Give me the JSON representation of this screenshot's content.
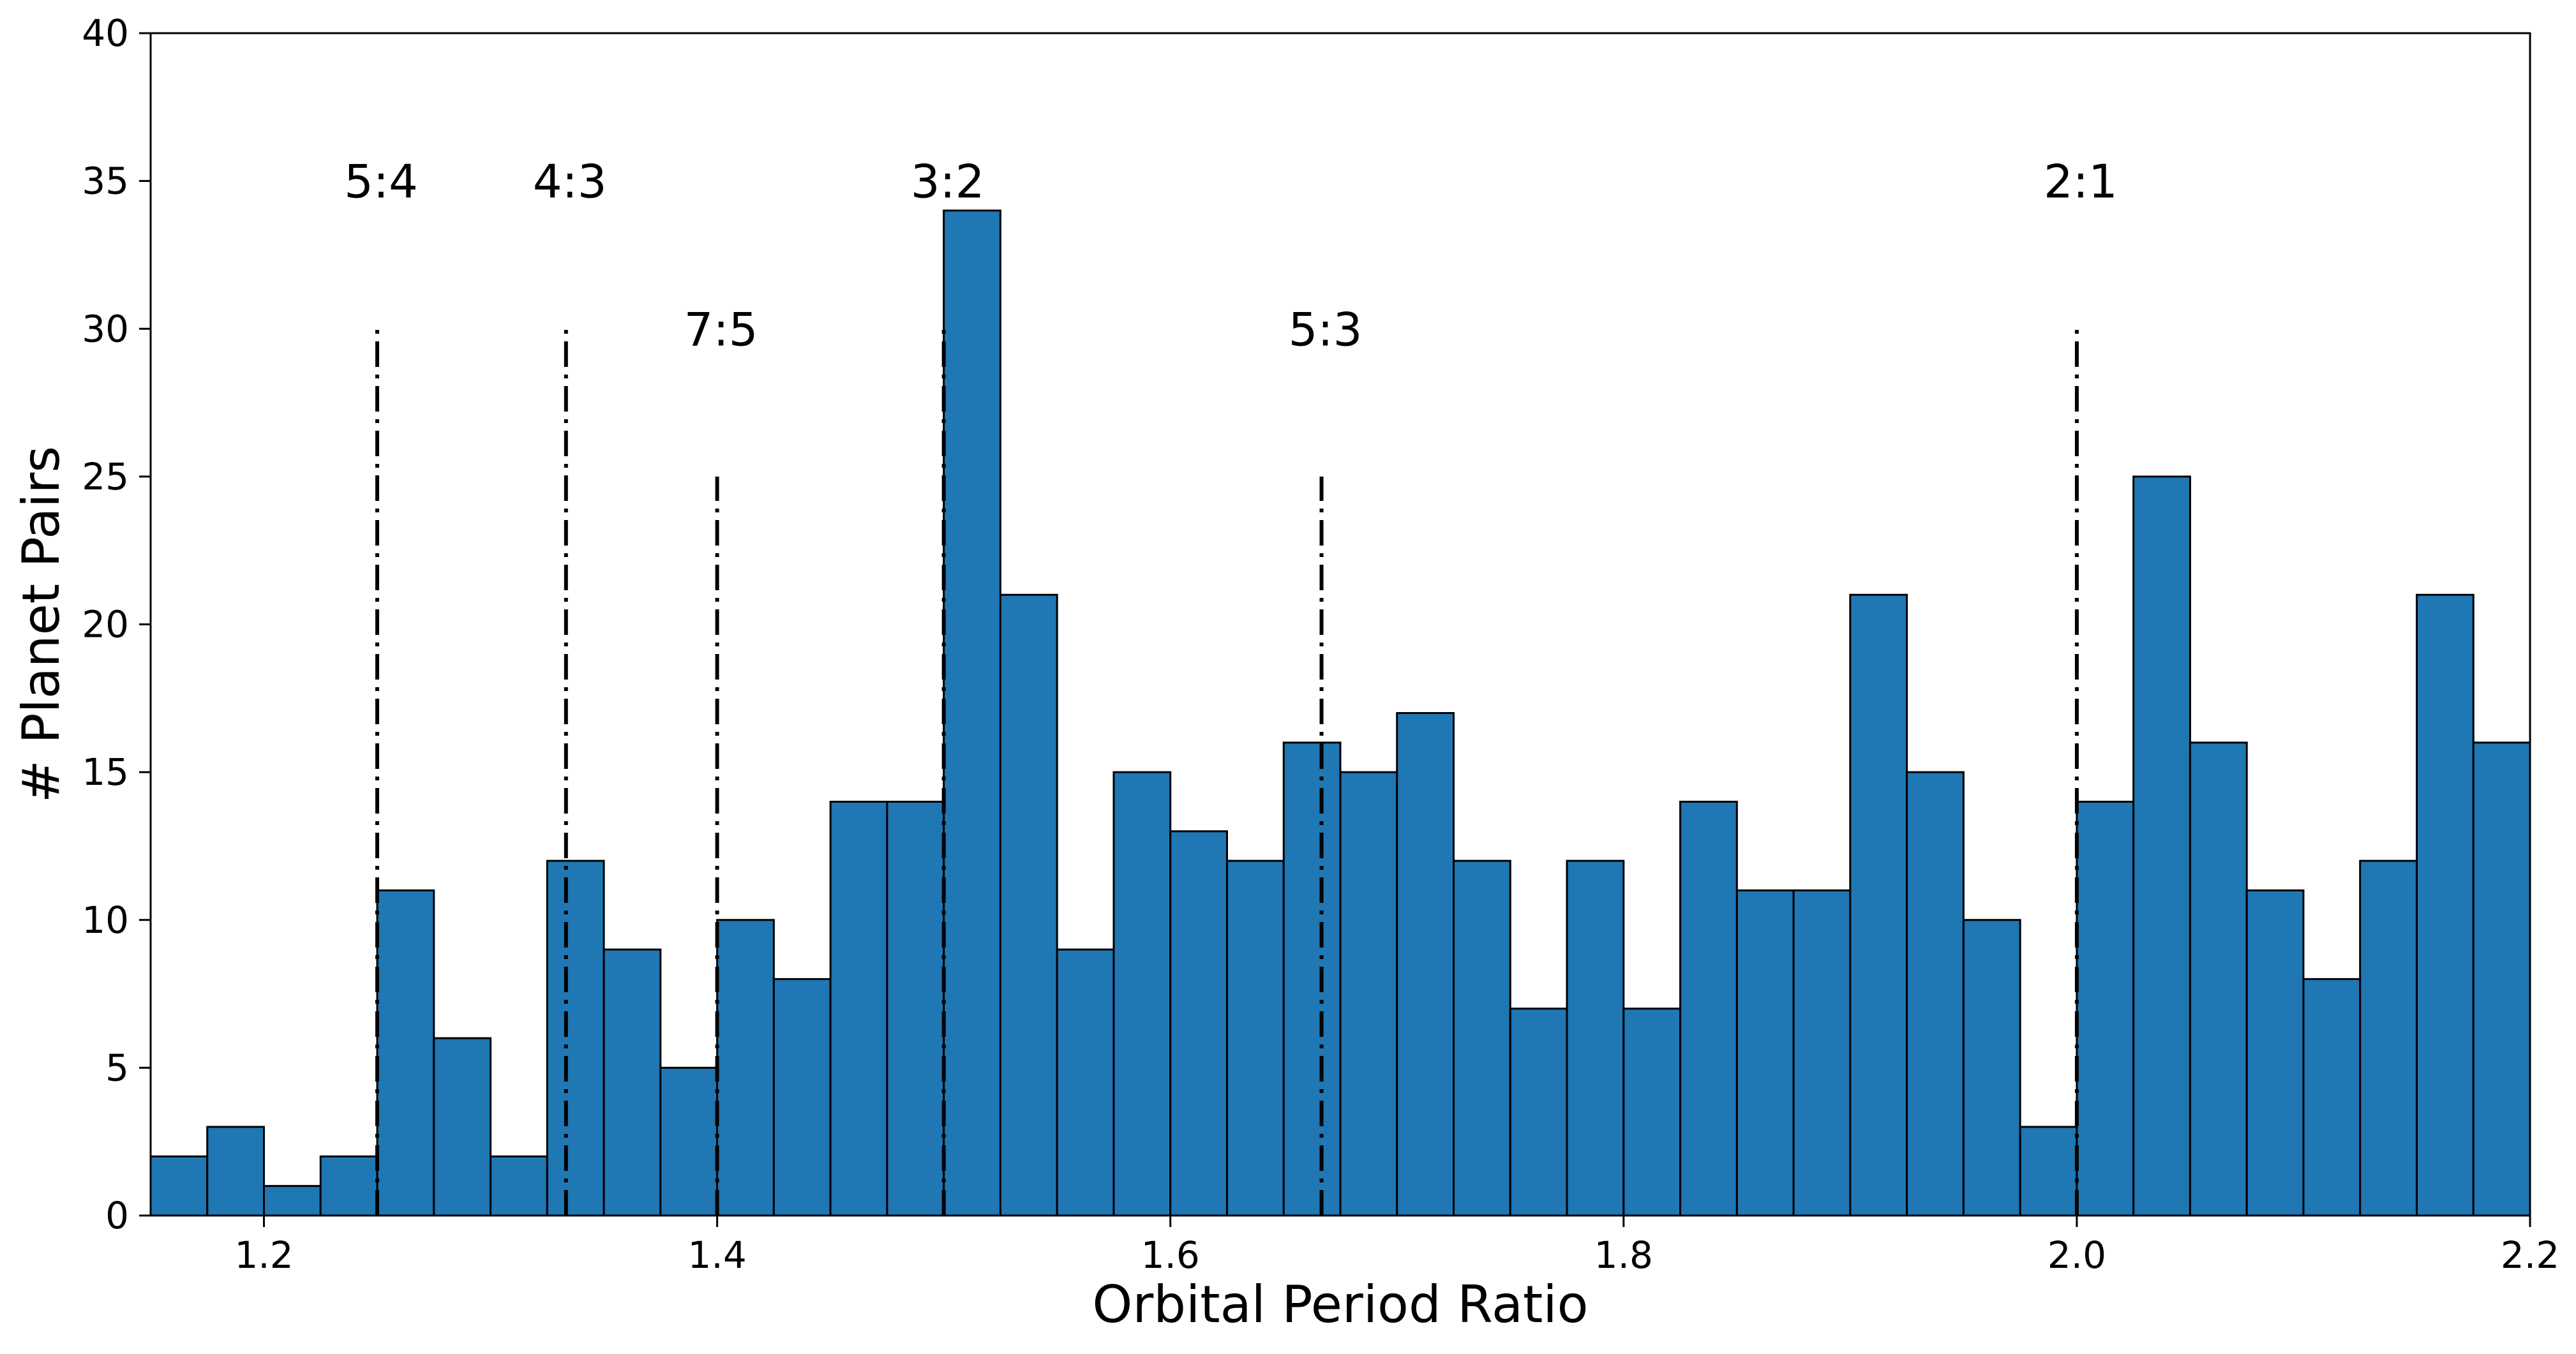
{
  "chart_data": {
    "type": "bar",
    "title": "",
    "xlabel": "Orbital Period Ratio",
    "ylabel": "# Planet Pairs",
    "xlim": [
      1.15,
      2.2
    ],
    "ylim": [
      0,
      40
    ],
    "grid": false,
    "bar_color": "#1f77b4",
    "edge_color": "#000000",
    "bin_start": 1.15,
    "bin_width": 0.025,
    "values": [
      2,
      3,
      1,
      2,
      11,
      6,
      2,
      12,
      9,
      5,
      10,
      8,
      14,
      14,
      34,
      21,
      9,
      15,
      13,
      12,
      16,
      15,
      17,
      12,
      7,
      12,
      7,
      14,
      11,
      11,
      21,
      15,
      10,
      3,
      14,
      25,
      16,
      11,
      8,
      12,
      21,
      16
    ],
    "xticks": [
      {
        "value": 1.2,
        "label": "1.2"
      },
      {
        "value": 1.4,
        "label": "1.4"
      },
      {
        "value": 1.6,
        "label": "1.6"
      },
      {
        "value": 1.8,
        "label": "1.8"
      },
      {
        "value": 2.0,
        "label": "2.0"
      },
      {
        "value": 2.2,
        "label": "2.2"
      }
    ],
    "yticks": [
      {
        "value": 0,
        "label": "0"
      },
      {
        "value": 5,
        "label": "5"
      },
      {
        "value": 10,
        "label": "10"
      },
      {
        "value": 15,
        "label": "15"
      },
      {
        "value": 20,
        "label": "20"
      },
      {
        "value": 25,
        "label": "25"
      },
      {
        "value": 30,
        "label": "30"
      },
      {
        "value": 35,
        "label": "35"
      },
      {
        "value": 40,
        "label": "40"
      }
    ],
    "resonances": [
      {
        "label": "5:4",
        "x": 1.25,
        "line_top": 30,
        "label_y": 35
      },
      {
        "label": "4:3",
        "x": 1.3333,
        "line_top": 30,
        "label_y": 35
      },
      {
        "label": "7:5",
        "x": 1.4,
        "line_top": 25,
        "label_y": 30
      },
      {
        "label": "3:2",
        "x": 1.5,
        "line_top": 30,
        "label_y": 35
      },
      {
        "label": "5:3",
        "x": 1.6667,
        "line_top": 25,
        "label_y": 30
      },
      {
        "label": "2:1",
        "x": 2.0,
        "line_top": 30,
        "label_y": 35
      }
    ]
  }
}
